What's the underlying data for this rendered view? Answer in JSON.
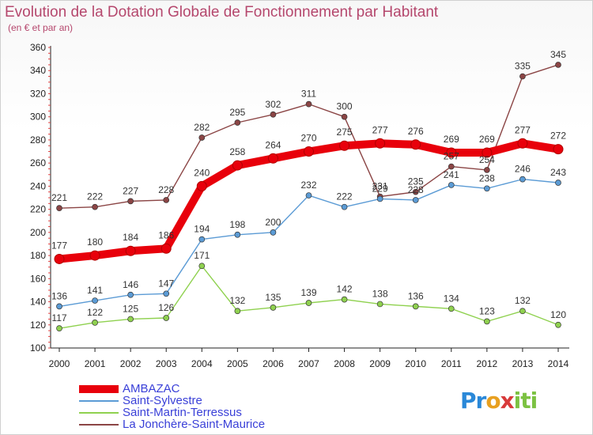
{
  "header": {
    "title": "Evolution de la Dotation Globale de Fonctionnement par Habitant",
    "subtitle": "(en € et par an)"
  },
  "logo": {
    "text": "Proxiti"
  },
  "chart_data": {
    "type": "line",
    "title": "Evolution de la Dotation Globale de Fonctionnement par Habitant",
    "subtitle": "(en € et par an)",
    "xlabel": "",
    "ylabel": "",
    "x": [
      "2000",
      "2001",
      "2002",
      "2003",
      "2004",
      "2005",
      "2006",
      "2007",
      "2008",
      "2009",
      "2010",
      "2011",
      "2012",
      "2013",
      "2014"
    ],
    "yticks": [
      100,
      120,
      140,
      160,
      180,
      200,
      220,
      240,
      260,
      280,
      300,
      320,
      340,
      360
    ],
    "ylim": [
      100,
      360
    ],
    "grid": false,
    "legend_position": "bottom-left",
    "series": [
      {
        "name": "AMBAZAC",
        "color": "#e8000b",
        "emphasis": true,
        "values": [
          177,
          180,
          184,
          186,
          240,
          258,
          264,
          270,
          275,
          277,
          276,
          269,
          269,
          277,
          272
        ]
      },
      {
        "name": "Saint-Sylvestre",
        "color": "#5b9bd5",
        "values": [
          136,
          141,
          146,
          147,
          194,
          198,
          200,
          232,
          222,
          229,
          228,
          241,
          238,
          246,
          243
        ]
      },
      {
        "name": "Saint-Martin-Terressus",
        "color": "#8fd14f",
        "values": [
          117,
          122,
          125,
          126,
          171,
          132,
          135,
          139,
          142,
          138,
          136,
          134,
          123,
          132,
          120
        ]
      },
      {
        "name": "La Jonchère-Saint-Maurice",
        "color": "#8b4545",
        "values": [
          221,
          222,
          227,
          228,
          282,
          295,
          302,
          311,
          300,
          231,
          235,
          257,
          254,
          335,
          345
        ]
      }
    ]
  }
}
